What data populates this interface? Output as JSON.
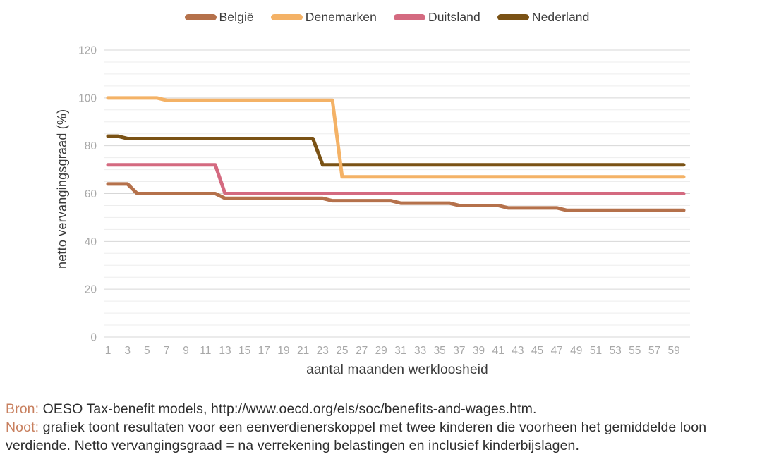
{
  "chart_data": {
    "type": "line",
    "title": "",
    "xlabel": "aantal maanden werkloosheid",
    "ylabel": "netto vervangingsgraad (%)",
    "x_range": [
      1,
      60
    ],
    "x_tick_labels": [
      "1",
      "3",
      "5",
      "7",
      "9",
      "11",
      "13",
      "15",
      "17",
      "19",
      "21",
      "23",
      "25",
      "27",
      "29",
      "31",
      "33",
      "35",
      "37",
      "39",
      "41",
      "43",
      "45",
      "47",
      "49",
      "51",
      "53",
      "55",
      "57",
      "59"
    ],
    "ylim": [
      0,
      120
    ],
    "y_major_ticks": [
      0,
      20,
      40,
      60,
      80,
      100,
      120
    ],
    "y_minor_step": 5,
    "grid": "horizontal-only",
    "legend_position": "top-center",
    "draw_order": [
      0,
      3,
      2,
      1
    ],
    "series": [
      {
        "name": "België",
        "color": "#b5714b",
        "values": [
          64,
          64,
          64,
          60,
          60,
          60,
          60,
          60,
          60,
          60,
          60,
          60,
          58,
          58,
          58,
          58,
          58,
          58,
          58,
          58,
          58,
          58,
          58,
          57,
          57,
          57,
          57,
          57,
          57,
          57,
          56,
          56,
          56,
          56,
          56,
          56,
          55,
          55,
          55,
          55,
          55,
          54,
          54,
          54,
          54,
          54,
          54,
          53,
          53,
          53,
          53,
          53,
          53,
          53,
          53,
          53,
          53,
          53,
          53,
          53
        ]
      },
      {
        "name": "Denemarken",
        "color": "#f4b266",
        "values": [
          100,
          100,
          100,
          100,
          100,
          100,
          99,
          99,
          99,
          99,
          99,
          99,
          99,
          99,
          99,
          99,
          99,
          99,
          99,
          99,
          99,
          99,
          99,
          99,
          67,
          67,
          67,
          67,
          67,
          67,
          67,
          67,
          67,
          67,
          67,
          67,
          67,
          67,
          67,
          67,
          67,
          67,
          67,
          67,
          67,
          67,
          67,
          67,
          67,
          67,
          67,
          67,
          67,
          67,
          67,
          67,
          67,
          67,
          67,
          67
        ]
      },
      {
        "name": "Duitsland",
        "color": "#d46a80",
        "values": [
          72,
          72,
          72,
          72,
          72,
          72,
          72,
          72,
          72,
          72,
          72,
          72,
          60,
          60,
          60,
          60,
          60,
          60,
          60,
          60,
          60,
          60,
          60,
          60,
          60,
          60,
          60,
          60,
          60,
          60,
          60,
          60,
          60,
          60,
          60,
          60,
          60,
          60,
          60,
          60,
          60,
          60,
          60,
          60,
          60,
          60,
          60,
          60,
          60,
          60,
          60,
          60,
          60,
          60,
          60,
          60,
          60,
          60,
          60,
          60
        ]
      },
      {
        "name": "Nederland",
        "color": "#7a5215",
        "values": [
          84,
          84,
          83,
          83,
          83,
          83,
          83,
          83,
          83,
          83,
          83,
          83,
          83,
          83,
          83,
          83,
          83,
          83,
          83,
          83,
          83,
          83,
          72,
          72,
          72,
          72,
          72,
          72,
          72,
          72,
          72,
          72,
          72,
          72,
          72,
          72,
          72,
          72,
          72,
          72,
          72,
          72,
          72,
          72,
          72,
          72,
          72,
          72,
          72,
          72,
          72,
          72,
          72,
          72,
          72,
          72,
          72,
          72,
          72,
          72
        ]
      }
    ]
  },
  "footer": {
    "bron_label": "Bron:",
    "bron_text": "OESO Tax-benefit models, http://www.oecd.org/els/soc/benefits-and-wages.htm.",
    "noot_label": "Noot:",
    "noot_text": "grafiek toont resultaten voor een eenverdienerskoppel met twee kinderen die voorheen het gemiddelde loon verdiende. Netto vervangingsgraad = na verrekening belastingen en inclusief kinderbijslagen."
  },
  "colors": {
    "tick_label": "#a8a8a8",
    "axis_title": "#3b3b3b",
    "grid_minor": "#ededed",
    "grid_major": "#d7d7d7",
    "footer_text": "#2d2d2d",
    "footer_label": "#c8805f"
  }
}
